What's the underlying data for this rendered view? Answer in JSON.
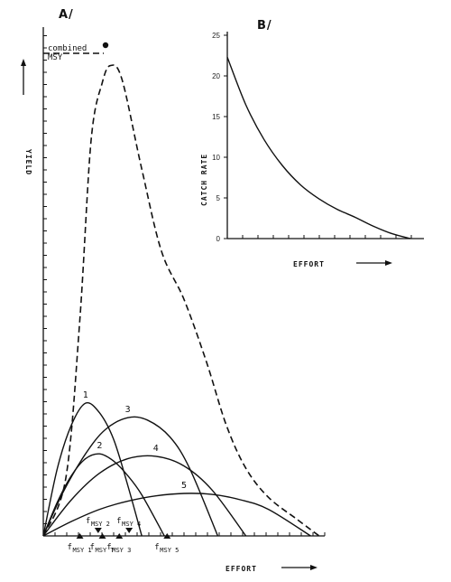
{
  "chart_data": [
    {
      "panel_label": "A/",
      "type": "line",
      "xlabel": "EFFORT",
      "ylabel": "YIELD",
      "grid": false,
      "xlim": [
        0,
        10
      ],
      "ylim": [
        0,
        10
      ],
      "series": [
        {
          "name": "1",
          "style": "solid",
          "x": [
            0,
            0.5,
            1,
            1.5,
            2,
            2.5,
            3,
            3.5
          ],
          "y": [
            0,
            1.4,
            2.3,
            2.75,
            2.55,
            2.0,
            1.05,
            0
          ]
        },
        {
          "name": "2",
          "style": "solid",
          "x": [
            0,
            0.5,
            1,
            1.5,
            2,
            2.5,
            3,
            3.5,
            4.3
          ],
          "y": [
            0,
            0.7,
            1.25,
            1.6,
            1.7,
            1.55,
            1.25,
            0.85,
            0
          ]
        },
        {
          "name": "3",
          "style": "solid",
          "x": [
            0,
            0.7,
            1.5,
            2.2,
            3,
            3.7,
            4.5,
            5.2,
            6.2
          ],
          "y": [
            0,
            0.9,
            1.7,
            2.2,
            2.45,
            2.4,
            2.05,
            1.4,
            0
          ]
        },
        {
          "name": "4",
          "style": "solid",
          "x": [
            0,
            1,
            2,
            3,
            4,
            5,
            6,
            7.2
          ],
          "y": [
            0,
            0.75,
            1.3,
            1.6,
            1.65,
            1.45,
            0.95,
            0
          ]
        },
        {
          "name": "5",
          "style": "solid",
          "x": [
            0,
            1,
            2,
            3,
            4,
            5,
            6,
            7,
            8,
            9.5
          ],
          "y": [
            0,
            0.3,
            0.55,
            0.72,
            0.83,
            0.88,
            0.86,
            0.75,
            0.55,
            0
          ]
        },
        {
          "name": "combined",
          "style": "dashed",
          "x": [
            0,
            0.8,
            1.3,
            1.7,
            2.1,
            2.4,
            2.8,
            3.5,
            4.2,
            5,
            5.8,
            6.5,
            7.2,
            8,
            9,
            9.8
          ],
          "y": [
            0,
            1.2,
            4.5,
            8.2,
            9.4,
            9.75,
            9.45,
            7.6,
            5.9,
            4.9,
            3.6,
            2.3,
            1.4,
            0.8,
            0.35,
            0
          ]
        }
      ],
      "annotations": {
        "combined_msy": "combined MSY",
        "markers": [
          {
            "label": "f",
            "sub": "MSY 1",
            "x": 1.3
          },
          {
            "label": "f",
            "sub": "MSY 2",
            "x": 1.95
          },
          {
            "label": "f",
            "sub": "MSY T",
            "x": 2.1
          },
          {
            "label": "f",
            "sub": "MSY 3",
            "x": 2.7
          },
          {
            "label": "f",
            "sub": "MSY 4",
            "x": 3.05
          },
          {
            "label": "f",
            "sub": "MSY 5",
            "x": 4.4
          }
        ]
      }
    },
    {
      "panel_label": "B/",
      "type": "line",
      "xlabel": "EFFORT",
      "ylabel": "CATCH RATE",
      "grid": false,
      "xlim": [
        0,
        10
      ],
      "ylim": [
        0,
        25
      ],
      "yticks": [
        "0",
        "5",
        "10",
        "15",
        "20",
        "25"
      ],
      "series": [
        {
          "name": "",
          "x": [
            0,
            1,
            2,
            3,
            4,
            5,
            6,
            7,
            8,
            9,
            10
          ],
          "y": [
            22.3,
            16.5,
            12.2,
            9.0,
            6.6,
            4.9,
            3.6,
            2.6,
            1.5,
            0.6,
            0
          ]
        }
      ]
    }
  ]
}
